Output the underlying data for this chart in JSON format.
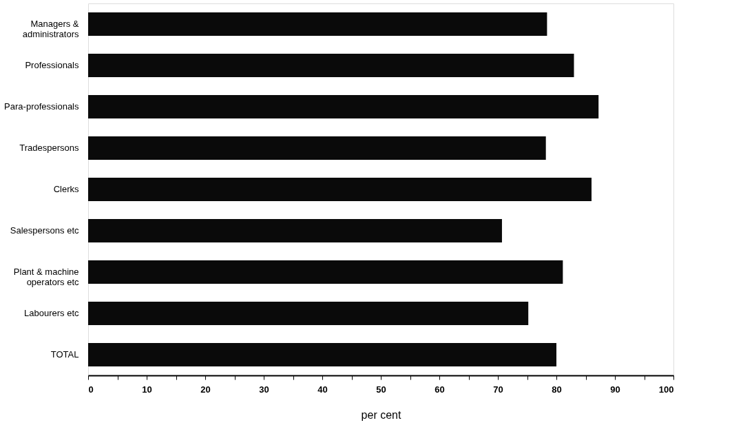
{
  "chart_data": {
    "type": "bar",
    "orientation": "horizontal",
    "xlabel": "per cent",
    "categories": [
      "Managers &\nadministrators",
      "Professionals",
      "Para-professionals",
      "Tradespersons",
      "Clerks",
      "Salespersons etc",
      "Plant & machine\noperators etc",
      "Labourers etc",
      "TOTAL"
    ],
    "values": [
      78.4,
      83.0,
      87.2,
      78.2,
      86.0,
      70.7,
      81.1,
      75.2,
      80.0
    ],
    "color": "#0a0a0a",
    "xlim": [
      0,
      100
    ],
    "xticks": [
      0,
      {
        "value": 5,
        "label": null
      },
      10,
      {
        "value": 15,
        "label": null
      },
      20,
      {
        "value": 25,
        "label": null
      },
      30,
      {
        "value": 35,
        "label": null
      },
      40,
      {
        "value": 45,
        "label": null
      },
      50,
      {
        "value": 55,
        "label": null
      },
      60,
      {
        "value": 65,
        "label": null
      },
      70,
      {
        "value": 75,
        "label": null
      },
      80,
      {
        "value": 85,
        "label": null
      },
      90,
      {
        "value": 95,
        "label": null
      },
      100
    ],
    "grid": false
  }
}
